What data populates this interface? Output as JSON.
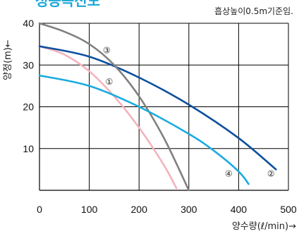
{
  "chart_data": {
    "type": "line",
    "title": "성능곡선도",
    "note": "흡상높이0.5m기준임.",
    "xlabel": "양수량(ℓ/min)→",
    "ylabel": "양정(m)←",
    "xlim": [
      0,
      500
    ],
    "ylim": [
      0,
      40
    ],
    "xticks": [
      0,
      100,
      200,
      300,
      400,
      500
    ],
    "yticks": [
      10,
      20,
      30,
      40
    ],
    "grid": true,
    "series": [
      {
        "name": "①",
        "color": "#f4b3bd",
        "x": [
          0,
          50,
          100,
          150,
          200,
          250,
          275
        ],
        "y": [
          34.5,
          32.5,
          28.5,
          22.5,
          15,
          6,
          0.5
        ]
      },
      {
        "name": "②",
        "color": "#0c4f9e",
        "x": [
          0,
          100,
          200,
          300,
          400,
          475
        ],
        "y": [
          34.5,
          32,
          27,
          20.5,
          12.5,
          5
        ]
      },
      {
        "name": "③",
        "color": "#808080",
        "x": [
          0,
          50,
          100,
          150,
          200,
          250,
          300
        ],
        "y": [
          40,
          38,
          35,
          30,
          22.5,
          12.5,
          0
        ]
      },
      {
        "name": "④",
        "color": "#19abe0",
        "x": [
          0,
          100,
          200,
          300,
          350,
          400,
          420
        ],
        "y": [
          27.5,
          25,
          20,
          13.5,
          9.5,
          4.5,
          1.5
        ]
      }
    ]
  }
}
